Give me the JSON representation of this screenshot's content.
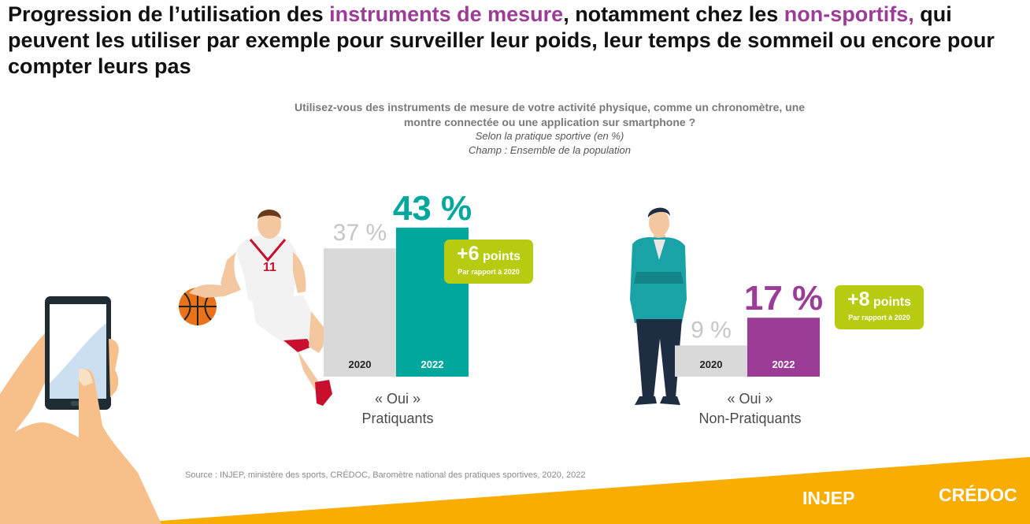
{
  "headline": {
    "part1": "Progression de l’utilisation des ",
    "hl1": "instruments de mesure",
    "part2": ", notamment chez les ",
    "hl2": "non-sportifs,",
    "part3": " qui peuvent les utiliser par exemple pour surveiller leur poids, leur temps de sommeil ou encore pour compter leurs pas"
  },
  "question": {
    "line1": "Utilisez-vous des instruments de mesure de votre activité physique, comme un chronomètre, une",
    "line2": "montre connectée ou une application sur smartphone ?",
    "subtitle": "Selon la pratique sportive (en  %)",
    "scope": "Champ : Ensemble de la population"
  },
  "chart_data": {
    "type": "bar",
    "categories": [
      "2020",
      "2022"
    ],
    "groups": [
      {
        "label_line1": "« Oui »",
        "label_line2": "Pratiquants",
        "values": [
          37,
          43
        ],
        "value_labels": [
          "37 %",
          "43 %"
        ],
        "change": {
          "value": "+6",
          "unit": "points",
          "note": "Par rapport à 2020"
        }
      },
      {
        "label_line1": "« Oui »",
        "label_line2": "Non-Pratiquants",
        "values": [
          9,
          17
        ],
        "value_labels": [
          "9 %",
          "17 %"
        ],
        "change": {
          "value": "+8",
          "unit": "points",
          "note": "Par rapport à 2020"
        }
      }
    ],
    "colors": {
      "bar_2020": "#d9d9d9",
      "bar_2022_group1": "#00a79d",
      "bar_2022_group2": "#9b3d97",
      "label_2020": "#c6c6c6",
      "badge": "#b7cc10"
    }
  },
  "footer": {
    "source": "Source : INJEP, ministère des sports, CRÉDOC, Baromètre national des pratiques sportives, 2020, 2022",
    "logo_left": "INJEP",
    "logo_right": "CRÉDOC",
    "band_color": "#f9ad00"
  },
  "illustrations": [
    "smartphone-hand-illustration",
    "basketball-player-illustration",
    "standing-man-illustration"
  ]
}
